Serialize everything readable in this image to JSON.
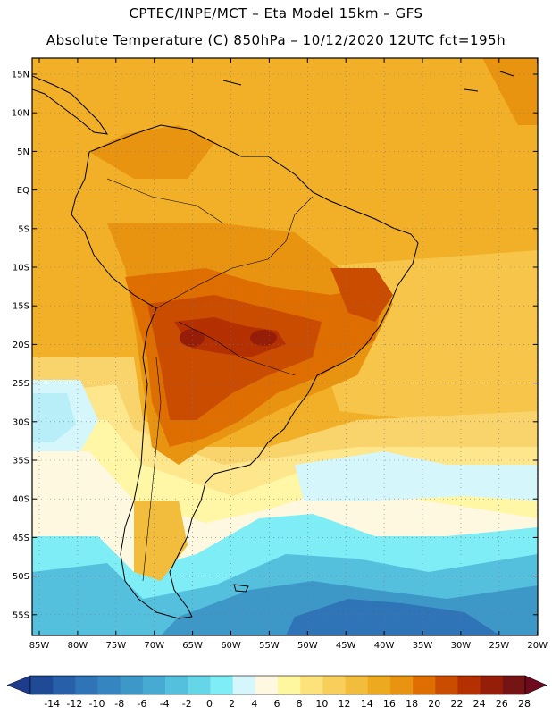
{
  "title": {
    "line1": "CPTEC/INPE/MCT –  Eta Model 15km – GFS",
    "line2": "Absolute Temperature (C) 850hPa – 10/12/2020 12UTC fct=195h"
  },
  "map": {
    "lat_labels": [
      "15N",
      "10N",
      "5N",
      "EQ",
      "5S",
      "10S",
      "15S",
      "20S",
      "25S",
      "30S",
      "35S",
      "40S",
      "45S",
      "50S",
      "55S"
    ],
    "lon_labels": [
      "85W",
      "80W",
      "75W",
      "70W",
      "65W",
      "60W",
      "55W",
      "50W",
      "45W",
      "40W",
      "35W",
      "30W",
      "25W",
      "20W"
    ]
  },
  "colorbar": {
    "labels": [
      "-14",
      "-12",
      "-10",
      "-8",
      "-6",
      "-4",
      "-2",
      "0",
      "2",
      "4",
      "6",
      "8",
      "10",
      "12",
      "14",
      "16",
      "18",
      "20",
      "22",
      "24",
      "26",
      "28"
    ],
    "under_color": "#1e3c8c",
    "over_color": "#6e0a1e",
    "colors": [
      "#1f4a96",
      "#2760a8",
      "#2f74b6",
      "#3585c0",
      "#3d98c8",
      "#47aad3",
      "#55c0de",
      "#64d6e8",
      "#7eedf5",
      "#d5f6fb",
      "#fff8e0",
      "#fff6a0",
      "#fde17a",
      "#f8cf5a",
      "#f2bc3c",
      "#eeaa1e",
      "#e99410",
      "#de6e00",
      "#ca4c00",
      "#b43000",
      "#961e08",
      "#741414"
    ]
  }
}
